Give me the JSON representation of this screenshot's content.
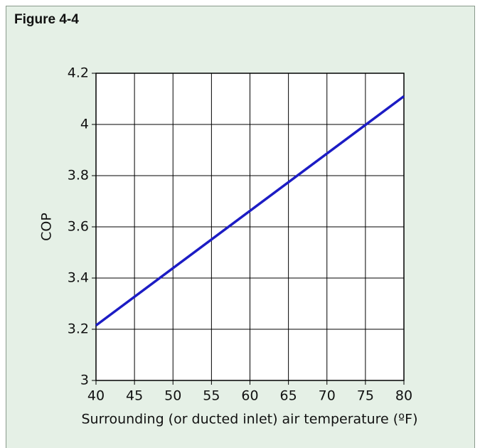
{
  "chart_data": {
    "type": "line",
    "title": "Figure 4-4",
    "x_label": "Surrounding (or ducted inlet) air temperature (ºF)",
    "y_label": "COP",
    "x": [
      40,
      80
    ],
    "series": [
      {
        "name": "COP",
        "color": "#1c1cc4",
        "values": [
          3.215,
          4.11
        ]
      }
    ],
    "xlim": [
      40,
      80
    ],
    "xticks": [
      40,
      45,
      50,
      55,
      60,
      65,
      70,
      75,
      80
    ],
    "ylim": [
      3,
      4.2
    ],
    "yticks": [
      3,
      3.2,
      3.4,
      3.6,
      3.8,
      4,
      4.2
    ],
    "grid": true
  }
}
